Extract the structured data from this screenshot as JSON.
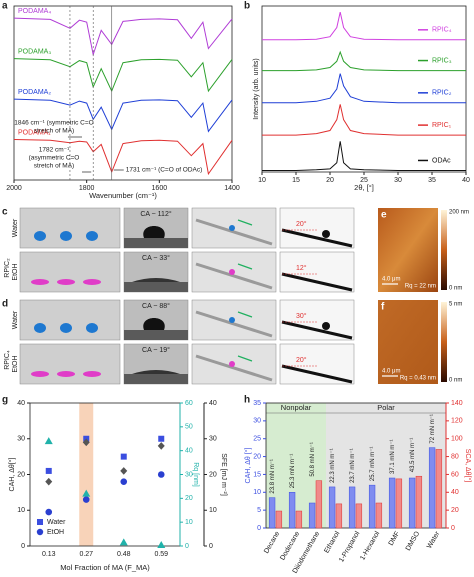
{
  "chart_data": [
    {
      "type": "line",
      "title": "a",
      "x_label": "Wavenumber (cm⁻¹)",
      "legend": "left",
      "x": [
        2000,
        1900,
        1846,
        1820,
        1800,
        1782,
        1760,
        1731,
        1700,
        1650,
        1600,
        1550,
        1512,
        1480,
        1465,
        1400
      ],
      "xlim": [
        2000,
        1400
      ],
      "xticks": [
        2000,
        1800,
        1600,
        1400
      ],
      "ylim": [
        0,
        4.3
      ],
      "series": [
        {
          "name": "PODAMA₄",
          "color": "#b03cd6",
          "values": [
            4.0,
            3.97,
            3.75,
            3.95,
            3.9,
            3.1,
            3.7,
            3.35,
            3.92,
            3.97,
            3.98,
            3.96,
            3.5,
            3.9,
            3.25,
            3.98
          ]
        },
        {
          "name": "PODAMA₃",
          "color": "#2ca02c",
          "values": [
            3.0,
            2.97,
            2.8,
            2.95,
            2.9,
            2.3,
            2.75,
            2.2,
            2.9,
            2.97,
            2.98,
            2.96,
            2.55,
            2.9,
            2.2,
            2.98
          ]
        },
        {
          "name": "PODAMA₂",
          "color": "#1f3fd6",
          "values": [
            2.0,
            1.97,
            1.85,
            1.95,
            1.9,
            1.5,
            1.8,
            1.25,
            1.9,
            1.97,
            1.98,
            1.96,
            1.55,
            1.9,
            1.2,
            1.98
          ]
        },
        {
          "name": "PODAMA₁",
          "color": "#e03030",
          "values": [
            1.0,
            0.98,
            0.92,
            0.96,
            0.94,
            0.7,
            0.88,
            0.2,
            0.9,
            0.97,
            0.98,
            0.96,
            0.6,
            0.9,
            0.15,
            0.98
          ]
        }
      ],
      "annotations": [
        {
          "x": 1846,
          "lines": [
            "1846 cm⁻¹ (symmetric C=O",
            "stretch of MA)"
          ]
        },
        {
          "x": 1782,
          "lines": [
            "1782 cm⁻¹",
            "(asymmetric C=O",
            "stretch of MA)"
          ]
        },
        {
          "x": 1731,
          "lines": [
            "1731 cm⁻¹ (C=O of ODAc)"
          ]
        }
      ]
    },
    {
      "type": "line",
      "title": "b",
      "x_label": "2θ, [°]",
      "y_label": "Intensity (arb. units)",
      "legend": "right",
      "x": [
        10,
        15,
        18,
        20,
        21,
        21.5,
        22,
        23,
        25,
        30,
        35,
        40
      ],
      "xlim": [
        10,
        40
      ],
      "xticks": [
        10,
        15,
        20,
        25,
        30,
        35,
        40
      ],
      "ylim": [
        0,
        5.4
      ],
      "series": [
        {
          "name": "RPIC₄",
          "color": "#d040e0",
          "values": [
            4.3,
            4.3,
            4.32,
            4.4,
            4.7,
            5.2,
            4.7,
            4.4,
            4.32,
            4.3,
            4.3,
            4.3
          ]
        },
        {
          "name": "RPIC₃",
          "color": "#2ca02c",
          "values": [
            3.3,
            3.3,
            3.32,
            3.4,
            3.6,
            3.9,
            3.6,
            3.4,
            3.32,
            3.3,
            3.3,
            3.3
          ]
        },
        {
          "name": "RPIC₂",
          "color": "#1f3fd6",
          "values": [
            2.25,
            2.25,
            2.3,
            2.4,
            2.7,
            3.2,
            2.8,
            2.45,
            2.3,
            2.25,
            2.25,
            2.25
          ]
        },
        {
          "name": "RPIC₁",
          "color": "#e03030",
          "values": [
            1.2,
            1.2,
            1.25,
            1.35,
            1.7,
            2.2,
            1.7,
            1.35,
            1.25,
            1.2,
            1.2,
            1.2
          ]
        },
        {
          "name": "ODAc",
          "color": "#111111",
          "values": [
            0.05,
            0.05,
            0.07,
            0.1,
            0.3,
            1.0,
            0.3,
            0.1,
            0.07,
            0.05,
            0.05,
            0.05
          ]
        }
      ]
    },
    {
      "type": "scatter",
      "title": "g",
      "x_label": "Mol Fraction of MA (F_MA)",
      "y_label": "CAH, Δθ[°]",
      "y2_label": "Rq [nm]",
      "y3_label": "SFE [mJ m⁻²]",
      "categories": [
        "0.13",
        "0.27",
        "0.48",
        "0.59"
      ],
      "highlight_index": 1,
      "ylim": [
        0,
        40
      ],
      "yticks": [
        0,
        10,
        20,
        30,
        40
      ],
      "y2lim": [
        0,
        60
      ],
      "y2ticks": [
        0,
        10,
        20,
        30,
        40,
        50,
        60
      ],
      "y2color": "#20b2aa",
      "y3lim": [
        0,
        40
      ],
      "y3ticks": [
        0,
        10,
        20,
        30,
        40
      ],
      "series": [
        {
          "name": "Water",
          "color": "#3b4ee0",
          "marker": "square",
          "values": [
            21,
            30,
            25,
            30
          ]
        },
        {
          "name": "EtOH",
          "color": "#2a3fd0",
          "marker": "circle",
          "values": [
            9.5,
            13,
            18,
            20
          ]
        },
        {
          "color": "#555555",
          "marker": "diamond",
          "axis": "y3",
          "values": [
            18,
            29,
            21,
            28
          ]
        },
        {
          "color": "#20b2aa",
          "marker": "triangle",
          "axis": "y2",
          "values": [
            44,
            22,
            1.5,
            0.43
          ]
        }
      ]
    },
    {
      "type": "bar",
      "title": "h",
      "y_label": "CAH, Δθ [°]",
      "y2_label": "SCA, Δθ[°]",
      "categories": [
        "Decane",
        "Dodecane",
        "Diiodomethane",
        "Ethanol",
        "1-Propanol",
        "1-Hexanol",
        "DMF",
        "DMSO",
        "Water"
      ],
      "ylim": [
        0,
        35
      ],
      "yticks": [
        0,
        5,
        10,
        15,
        20,
        25,
        30,
        35
      ],
      "ycolor": "#3b4ee0",
      "y2lim": [
        0,
        140
      ],
      "y2ticks": [
        0,
        20,
        40,
        60,
        80,
        100,
        120,
        140
      ],
      "y2color": "#e03030",
      "regions": [
        {
          "label": "Nonpolar",
          "span": 3,
          "color": "#d6ecd0"
        },
        {
          "label": "Polar",
          "span": 6,
          "color": "#e4e4e4"
        }
      ],
      "annotations": [
        "23.8 mN m⁻¹",
        "25.3 mN m⁻¹",
        "50.8 mN m⁻¹",
        "22.3 mN m⁻¹",
        "23.7 mN m⁻¹",
        "25.7 mN m⁻¹",
        "37.1 mN m⁻¹",
        "43.5 mN m⁻¹",
        "72 mN m⁻¹"
      ],
      "series": [
        {
          "color": "#7f8cf0",
          "values": [
            8.5,
            10,
            7,
            11.5,
            11.5,
            12,
            14,
            14,
            22.5
          ]
        },
        {
          "color": "#f08a8a",
          "axis": "y2",
          "values": [
            19,
            19,
            53,
            27,
            27,
            28,
            55,
            58,
            88
          ]
        }
      ]
    }
  ],
  "photos": {
    "c": {
      "label": "c",
      "sample": "RPIC₂",
      "rows": [
        "Water",
        "EtOH"
      ],
      "contact_angles": [
        "CA ~ 112°",
        "CA ~ 33°"
      ],
      "tilt_angles": [
        "20°",
        "12°"
      ]
    },
    "d": {
      "label": "d",
      "sample": "RPIC₄",
      "rows": [
        "Water",
        "EtOH"
      ],
      "contact_angles": [
        "CA ~ 88°",
        "CA ~ 19°"
      ],
      "tilt_angles": [
        "30°",
        "20°"
      ]
    },
    "e": {
      "label": "e",
      "scale_max": "200 nm",
      "scale_min": "0 nm",
      "scale_bar": "4.0 μm",
      "roughness": "Rq = 22 nm"
    },
    "f": {
      "label": "f",
      "scale_max": "5 nm",
      "scale_min": "0 nm",
      "scale_bar": "4.0 μm",
      "roughness": "Rq = 0.43 nm"
    }
  }
}
